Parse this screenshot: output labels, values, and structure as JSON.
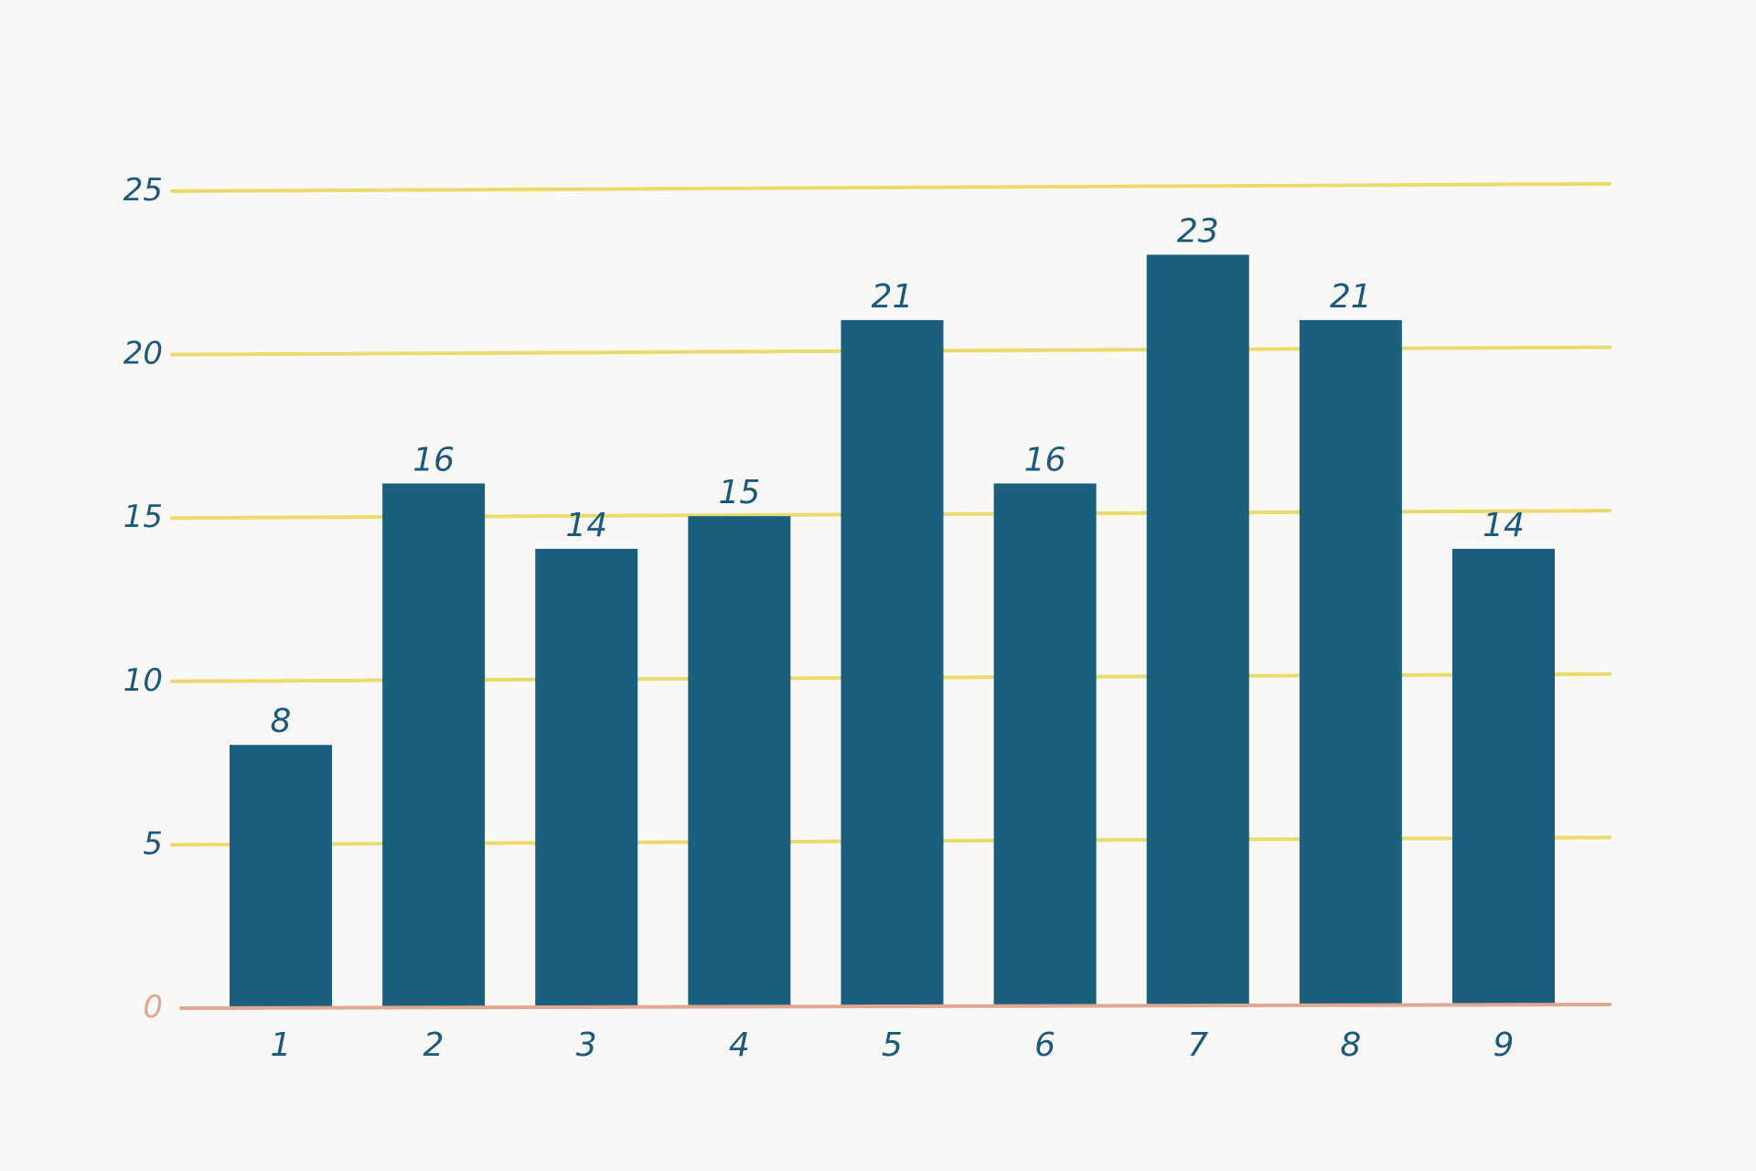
{
  "colors": {
    "background": "#f9f8f6",
    "bar": "#1a5f7e",
    "gridline": "#ecd96b",
    "baseline": "#e2a790",
    "text": "#1a5a7c"
  },
  "chart_data": {
    "type": "bar",
    "title": "",
    "xlabel": "",
    "ylabel": "",
    "categories": [
      "1",
      "2",
      "3",
      "4",
      "5",
      "6",
      "7",
      "8",
      "9"
    ],
    "values": [
      8,
      16,
      14,
      15,
      21,
      16,
      23,
      21,
      14
    ],
    "value_labels": [
      "8",
      "16",
      "14",
      "15",
      "21",
      "16",
      "23",
      "21",
      "14"
    ],
    "ylim": [
      0,
      25
    ],
    "yticks": [
      0,
      5,
      10,
      15,
      20,
      25
    ],
    "ytick_labels": [
      "0",
      "5",
      "10",
      "15",
      "20",
      "25"
    ],
    "grid": true,
    "legend": "none"
  }
}
